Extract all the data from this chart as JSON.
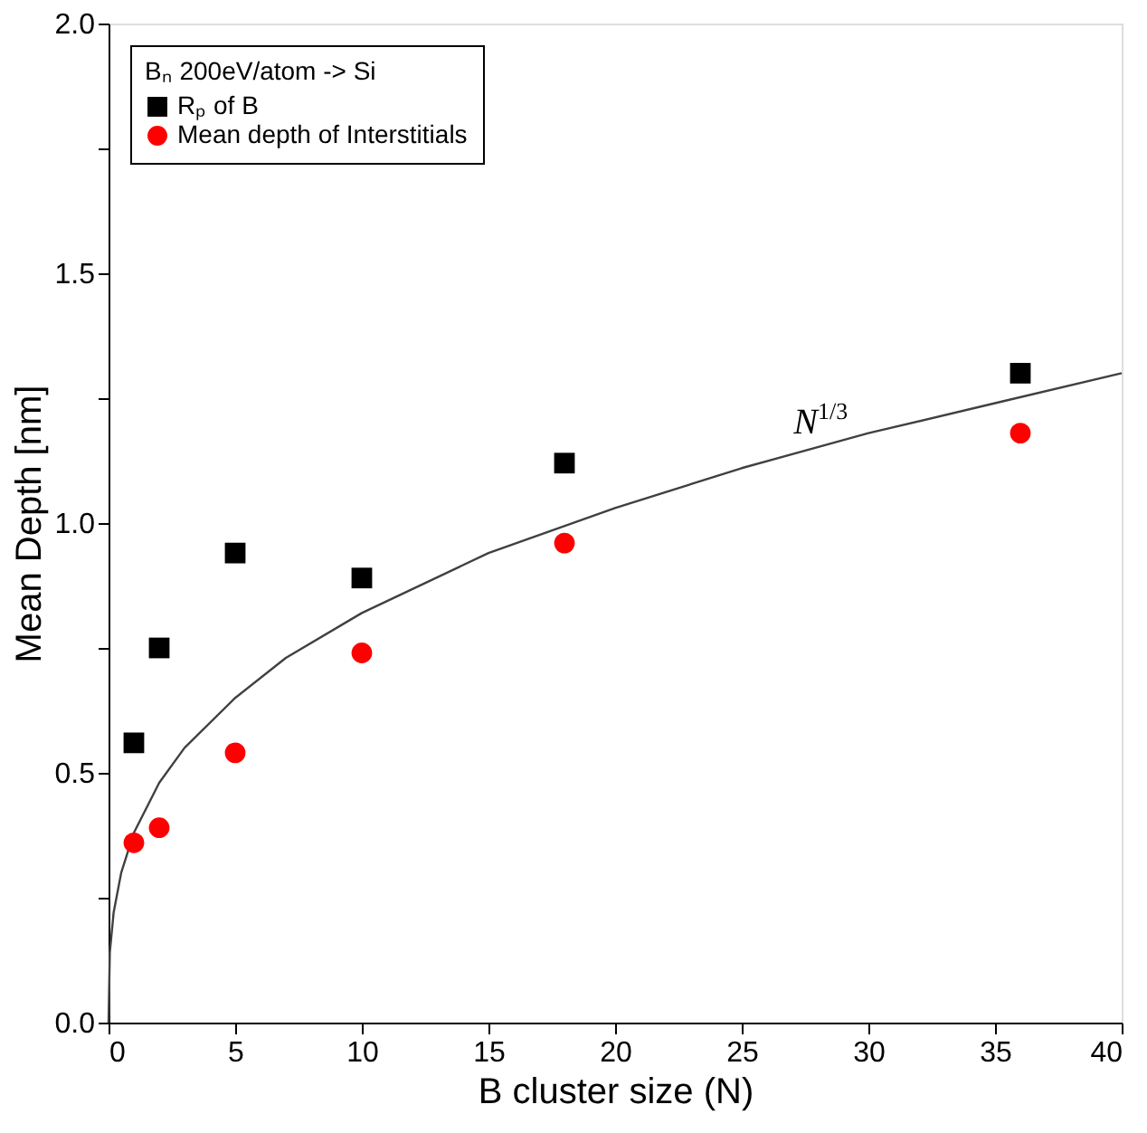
{
  "chart_data": {
    "type": "scatter",
    "xlabel": "B cluster size (N)",
    "ylabel": "Mean Depth [nm]",
    "legend_title": "Bₙ 200eV/atom -> Si",
    "xlim": [
      0,
      40
    ],
    "ylim": [
      0,
      2.0
    ],
    "xticks": [
      0,
      5,
      10,
      15,
      20,
      25,
      30,
      35,
      40
    ],
    "yticks": [
      {
        "value": 0,
        "label": "0.0"
      },
      {
        "value": 0.25,
        "label": null
      },
      {
        "value": 0.5,
        "label": "0.5"
      },
      {
        "value": 0.75,
        "label": null
      },
      {
        "value": 1.0,
        "label": "1.0"
      },
      {
        "value": 1.25,
        "label": null
      },
      {
        "value": 1.5,
        "label": "1.5"
      },
      {
        "value": 1.75,
        "label": null
      },
      {
        "value": 2.0,
        "label": "2.0"
      }
    ],
    "grid": false,
    "legend": "top left",
    "series": [
      {
        "name": "Rₚ of B",
        "color": "#000000",
        "marker": "square",
        "x": [
          1,
          2,
          5,
          10,
          18,
          36
        ],
        "values": [
          0.56,
          0.75,
          0.94,
          0.89,
          1.12,
          1.3
        ]
      },
      {
        "name": "Mean depth of Interstitials",
        "color": "#ff0000",
        "marker": "circle",
        "x": [
          1,
          2,
          5,
          10,
          18,
          36
        ],
        "values": [
          0.36,
          0.39,
          0.54,
          0.74,
          0.96,
          1.18
        ]
      },
      {
        "type": "line",
        "color": "#404040",
        "marker": "none",
        "line_style": "solid",
        "x": [
          0,
          0.05,
          0.2,
          0.5,
          1,
          2,
          3,
          5,
          7,
          10,
          15,
          20,
          25,
          30,
          35,
          40
        ],
        "values": [
          0,
          0.14,
          0.22,
          0.3,
          0.38,
          0.48,
          0.55,
          0.65,
          0.73,
          0.82,
          0.94,
          1.03,
          1.11,
          1.18,
          1.24,
          1.3
        ]
      }
    ],
    "annotations": [
      {
        "text": "N$^{1/3}$",
        "x": 28,
        "y": 1.15
      }
    ]
  }
}
